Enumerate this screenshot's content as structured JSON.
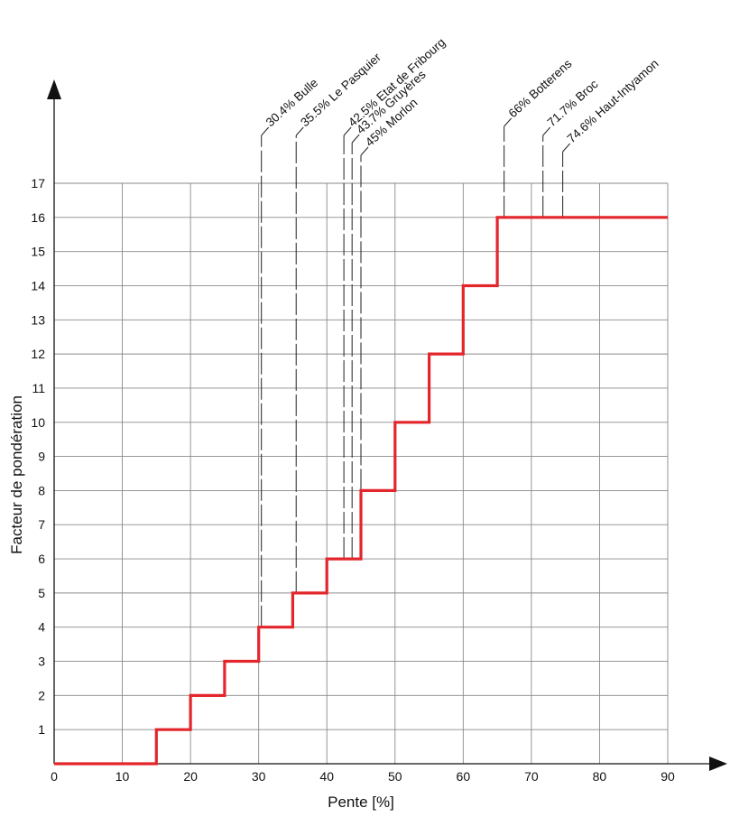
{
  "chart_data": {
    "type": "line",
    "step": true,
    "title": "",
    "xlabel": "Pente [%]",
    "ylabel": "Facteur de pondération",
    "xlim": [
      0,
      90
    ],
    "ylim": [
      0,
      17
    ],
    "xticks": [
      0,
      10,
      20,
      30,
      40,
      50,
      60,
      70,
      80,
      90
    ],
    "yticks": [
      1,
      2,
      3,
      4,
      5,
      6,
      7,
      8,
      9,
      10,
      11,
      12,
      13,
      14,
      15,
      16,
      17
    ],
    "grid": true,
    "line_color": "#e3262b",
    "series": [
      {
        "x": [
          0,
          15,
          15,
          20,
          20,
          25,
          25,
          30,
          30,
          35,
          35,
          40,
          40,
          45,
          45,
          50,
          50,
          55,
          55,
          60,
          60,
          65,
          65,
          90
        ],
        "y": [
          0,
          0,
          1,
          1,
          2,
          2,
          3,
          3,
          4,
          4,
          5,
          5,
          6,
          6,
          8,
          8,
          10,
          10,
          12,
          12,
          14,
          14,
          16,
          16
        ]
      }
    ],
    "annotations": [
      {
        "x": 30.4,
        "label": "30.4% Bulle"
      },
      {
        "x": 35.5,
        "label": "35.5% Le Pasquier"
      },
      {
        "x": 42.5,
        "label": "42.5% Etat de Fribourg"
      },
      {
        "x": 43.7,
        "label": "43.7% Gruyères"
      },
      {
        "x": 45,
        "label": "45% Morlon"
      },
      {
        "x": 66,
        "label": "66% Botterens"
      },
      {
        "x": 71.7,
        "label": "71.7% Broc"
      },
      {
        "x": 74.6,
        "label": "74.6% Haut-Intyamon"
      }
    ]
  }
}
